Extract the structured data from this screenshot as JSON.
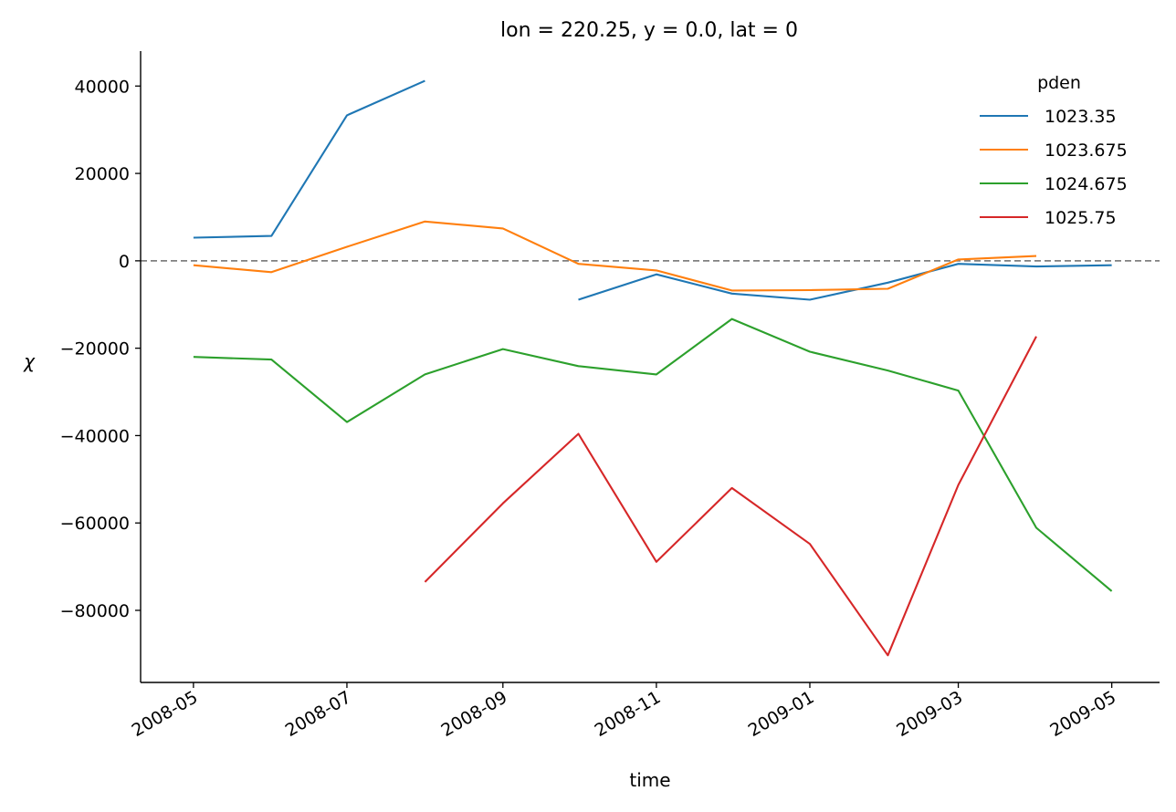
{
  "chart_data": {
    "type": "line",
    "title": "lon = 220.25, y = 0.0, lat = 0",
    "xlabel": "time",
    "ylabel": "χ",
    "x": [
      "2008-05-01",
      "2008-06-01",
      "2008-07-01",
      "2008-08-01",
      "2008-09-01",
      "2008-10-01",
      "2008-11-01",
      "2008-12-01",
      "2009-01-01",
      "2009-02-01",
      "2009-03-01",
      "2009-04-01",
      "2009-05-01"
    ],
    "x_ticks": [
      "2008-05",
      "2008-07",
      "2008-09",
      "2008-11",
      "2009-01",
      "2009-03",
      "2009-05"
    ],
    "xlim": [
      "2008-04-10",
      "2009-05-20"
    ],
    "y_ticks": [
      40000,
      20000,
      0,
      -20000,
      -40000,
      -60000,
      -80000
    ],
    "ylim": [
      -96500,
      48000
    ],
    "reference_line": {
      "y": 0,
      "style": "dashed",
      "color": "#808080"
    },
    "legend": {
      "title": "pden",
      "placement": "top-right"
    },
    "series": [
      {
        "name": "1023.35",
        "color": "#1f77b4",
        "values": [
          5300,
          5700,
          33300,
          41200,
          null,
          -8900,
          -3100,
          -7500,
          -8900,
          -5000,
          -700,
          -1300,
          -1000
        ]
      },
      {
        "name": "1023.675",
        "color": "#ff7f0e",
        "values": [
          -1000,
          -2600,
          3200,
          9000,
          7400,
          -700,
          -2200,
          -6800,
          -6700,
          -6400,
          300,
          1100,
          null
        ]
      },
      {
        "name": "1024.675",
        "color": "#2ca02c",
        "values": [
          -22000,
          -22600,
          -36900,
          -26000,
          -20200,
          -24100,
          -26000,
          -13300,
          -20800,
          -25100,
          -29700,
          -61100,
          -75600
        ]
      },
      {
        "name": "1025.75",
        "color": "#d62728",
        "values": [
          null,
          null,
          null,
          -73500,
          -55500,
          -39600,
          -68900,
          -52000,
          -64800,
          -90300,
          -51300,
          -17300,
          null
        ]
      }
    ]
  }
}
